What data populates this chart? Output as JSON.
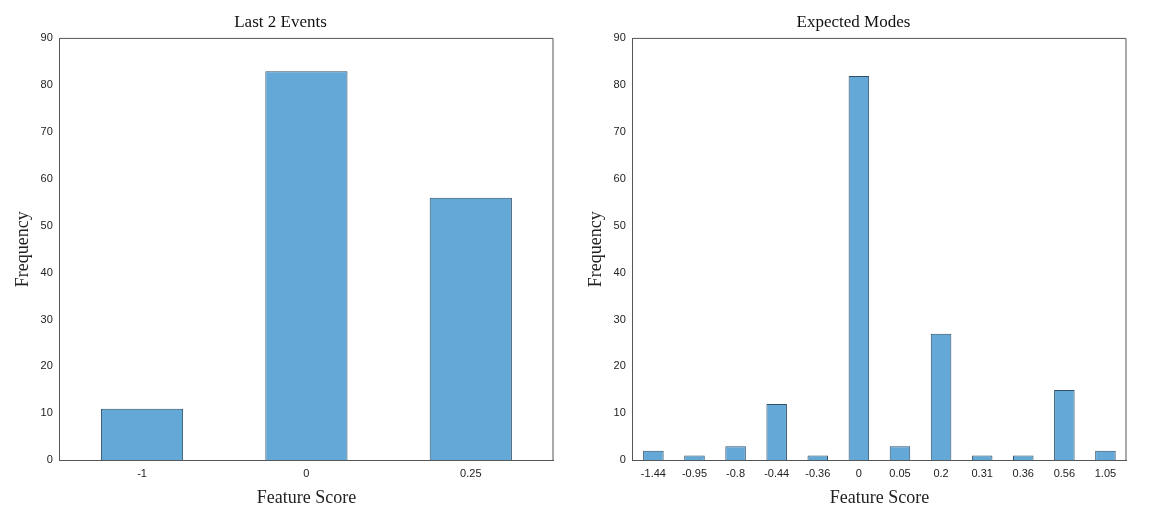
{
  "chart_data": [
    {
      "type": "bar",
      "title": "Last 2 Events",
      "xlabel": "Feature Score",
      "ylabel": "Frequency",
      "categories": [
        "-1",
        "0",
        "0.25"
      ],
      "values": [
        11,
        83,
        56
      ],
      "color": "#64a8d8",
      "ylim": [
        0,
        90
      ],
      "yticks": [
        0,
        10,
        20,
        30,
        40,
        50,
        60,
        70,
        80,
        90
      ],
      "grid": false,
      "legend": false
    },
    {
      "type": "bar",
      "title": "Expected Modes",
      "xlabel": "Feature Score",
      "ylabel": "Frequency",
      "categories": [
        "-1.44",
        "-0.95",
        "-0.8",
        "-0.44",
        "-0.36",
        "0",
        "0.05",
        "0.2",
        "0.31",
        "0.36",
        "0.56",
        "1.05"
      ],
      "values": [
        2,
        1,
        3,
        12,
        1,
        82,
        3,
        27,
        1,
        1,
        15,
        2
      ],
      "color": "#64a8d8",
      "ylim": [
        0,
        90
      ],
      "yticks": [
        0,
        10,
        20,
        30,
        40,
        50,
        60,
        70,
        80,
        90
      ],
      "grid": false,
      "legend": false
    }
  ]
}
